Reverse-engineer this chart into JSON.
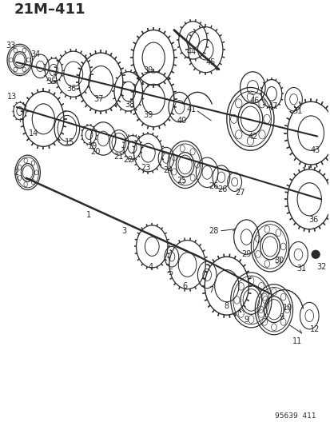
{
  "title": "21M–411",
  "footer": "95639  411",
  "bg": "#ffffff",
  "lc": "#2a2a2a",
  "fig_width": 4.14,
  "fig_height": 5.33,
  "dpi": 100
}
